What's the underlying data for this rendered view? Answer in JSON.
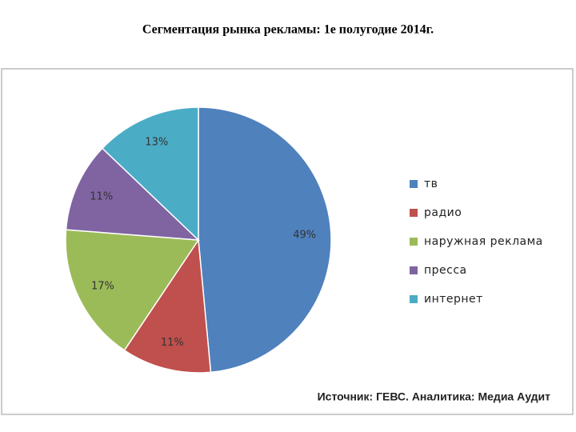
{
  "chart_data": {
    "type": "pie",
    "title": "Сегментация рынка рекламы: 1е полугодие 2014г.",
    "categories": [
      "тв",
      "радио",
      "наружная реклама",
      "пресса",
      "интернет"
    ],
    "values": [
      49,
      11,
      17,
      11,
      13
    ],
    "value_labels": [
      "49%",
      "11%",
      "17%",
      "11%",
      "13%"
    ],
    "colors": [
      "#4f81bd",
      "#c0504d",
      "#9bbb59",
      "#8064a2",
      "#4bacc6"
    ],
    "legend": "right",
    "source": "Источник: ГЕВС. Аналитика: Медиа Аудит"
  }
}
